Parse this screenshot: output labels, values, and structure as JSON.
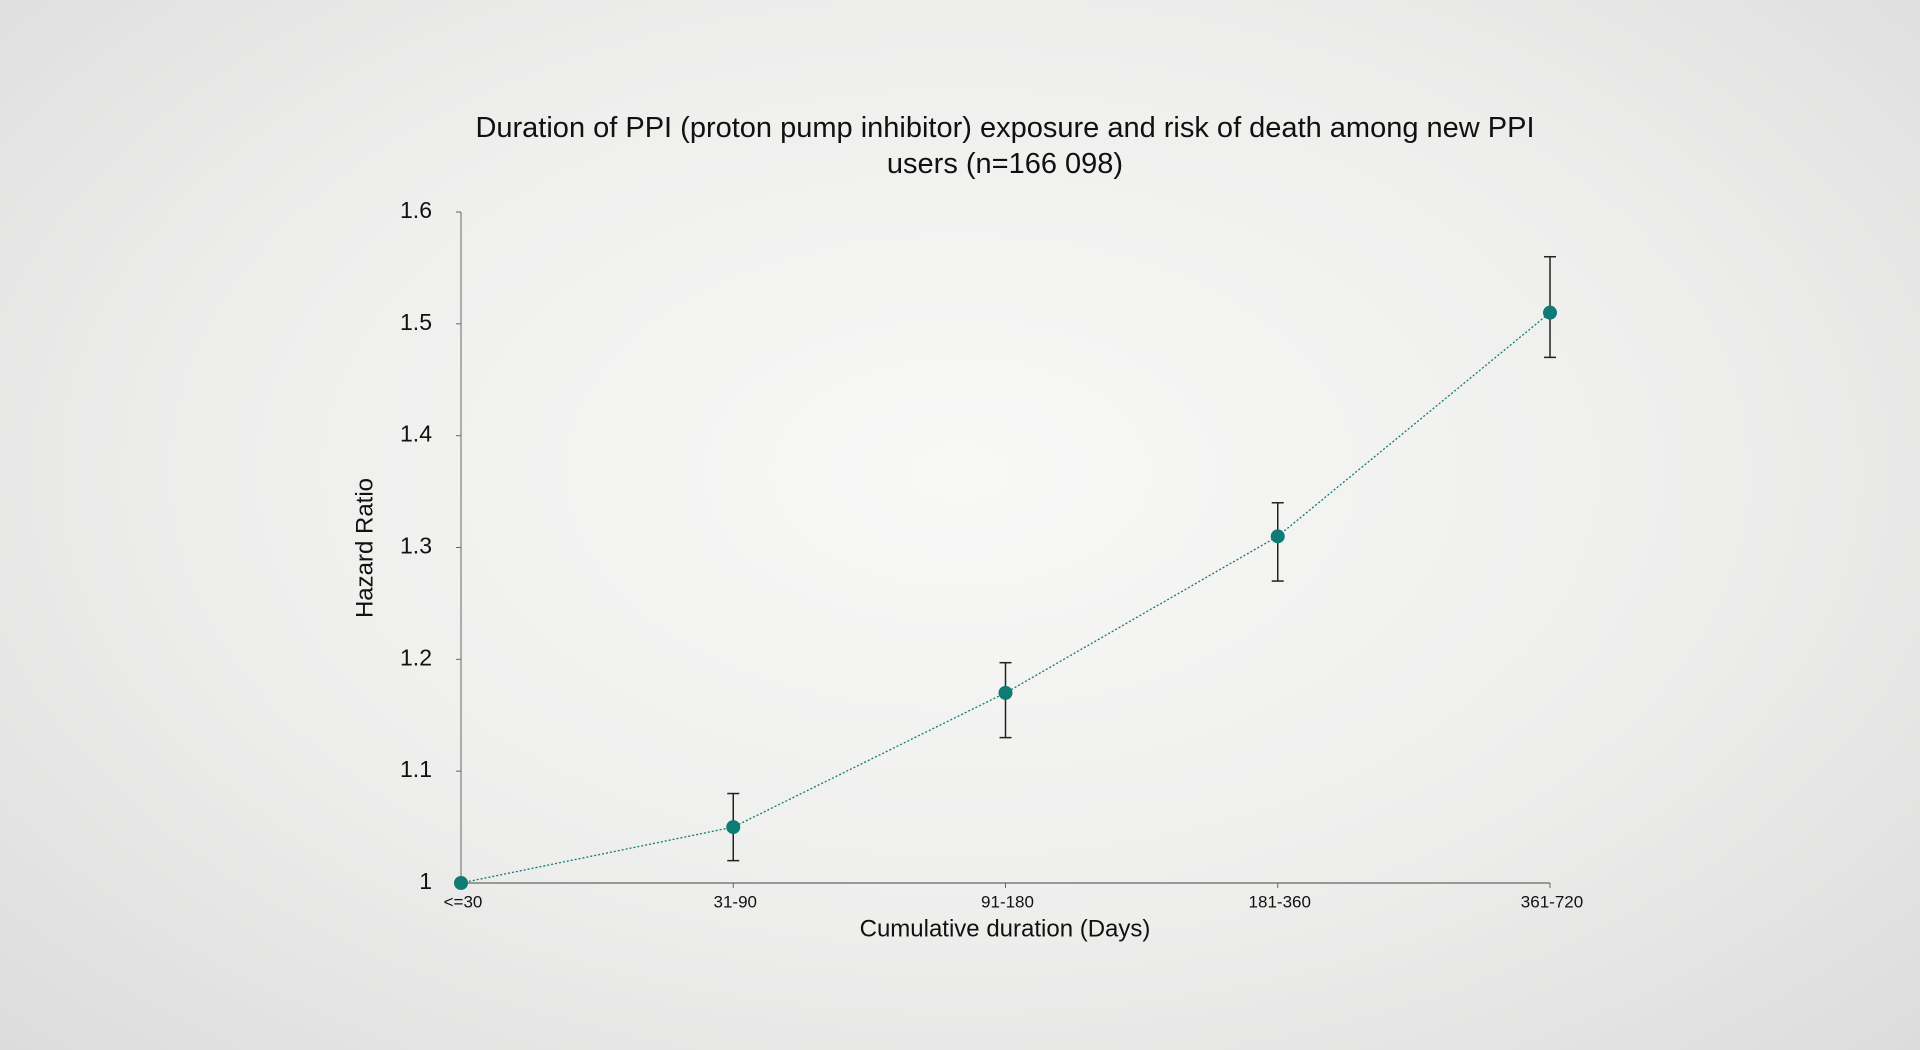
{
  "chart_data": {
    "type": "line",
    "title": "Duration of PPI (proton pump inhibitor) exposure and risk of death among new PPI users (n=166 098)",
    "x_label": "Cumulative duration (Days)",
    "y_label": "Hazard Ratio",
    "categories": [
      "<=30",
      "31-90",
      "91-180",
      "181-360",
      "361-720"
    ],
    "series": [
      {
        "name": "Hazard Ratio",
        "color": "#0e7c74",
        "values": [
          1,
          1.05,
          1.17,
          1.31,
          1.51
        ],
        "ci_low": [
          null,
          1.02,
          1.13,
          1.27,
          1.47
        ],
        "ci_high": [
          null,
          1.08,
          1.197,
          1.34,
          1.56
        ]
      }
    ],
    "ylim": [
      1,
      1.6
    ],
    "yticks": [
      1,
      1.1,
      1.2,
      1.3,
      1.4,
      1.5,
      1.6
    ]
  }
}
